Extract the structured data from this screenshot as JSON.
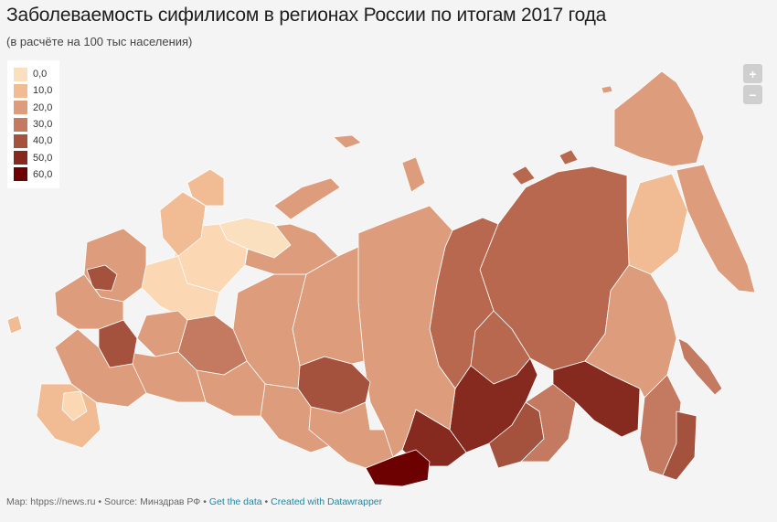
{
  "header": {
    "title": "Заболеваемость сифилисом в регионах России по итогам 2017 года",
    "subtitle": "(в расчёте на 100 тыс населения)"
  },
  "legend": {
    "items": [
      {
        "label": "0,0",
        "color": "#fbe0bf"
      },
      {
        "label": "10,0",
        "color": "#f1bb93"
      },
      {
        "label": "20,0",
        "color": "#dd9c7b"
      },
      {
        "label": "30,0",
        "color": "#c47a60"
      },
      {
        "label": "40,0",
        "color": "#a4513d"
      },
      {
        "label": "50,0",
        "color": "#86291f"
      },
      {
        "label": "60,0",
        "color": "#6d0000"
      }
    ]
  },
  "zoom": {
    "in_label": "+",
    "out_label": "−"
  },
  "footer": {
    "map_credit": "Map: htpps://news.ru",
    "separator": "•",
    "source": "Source: Минздрав РФ",
    "get_data": "Get the data",
    "created_with": "Created with Datawrapper"
  },
  "colors": {
    "background": "#f4f4f4",
    "region_border": "#ffffff",
    "link": "#1b87a6"
  }
}
